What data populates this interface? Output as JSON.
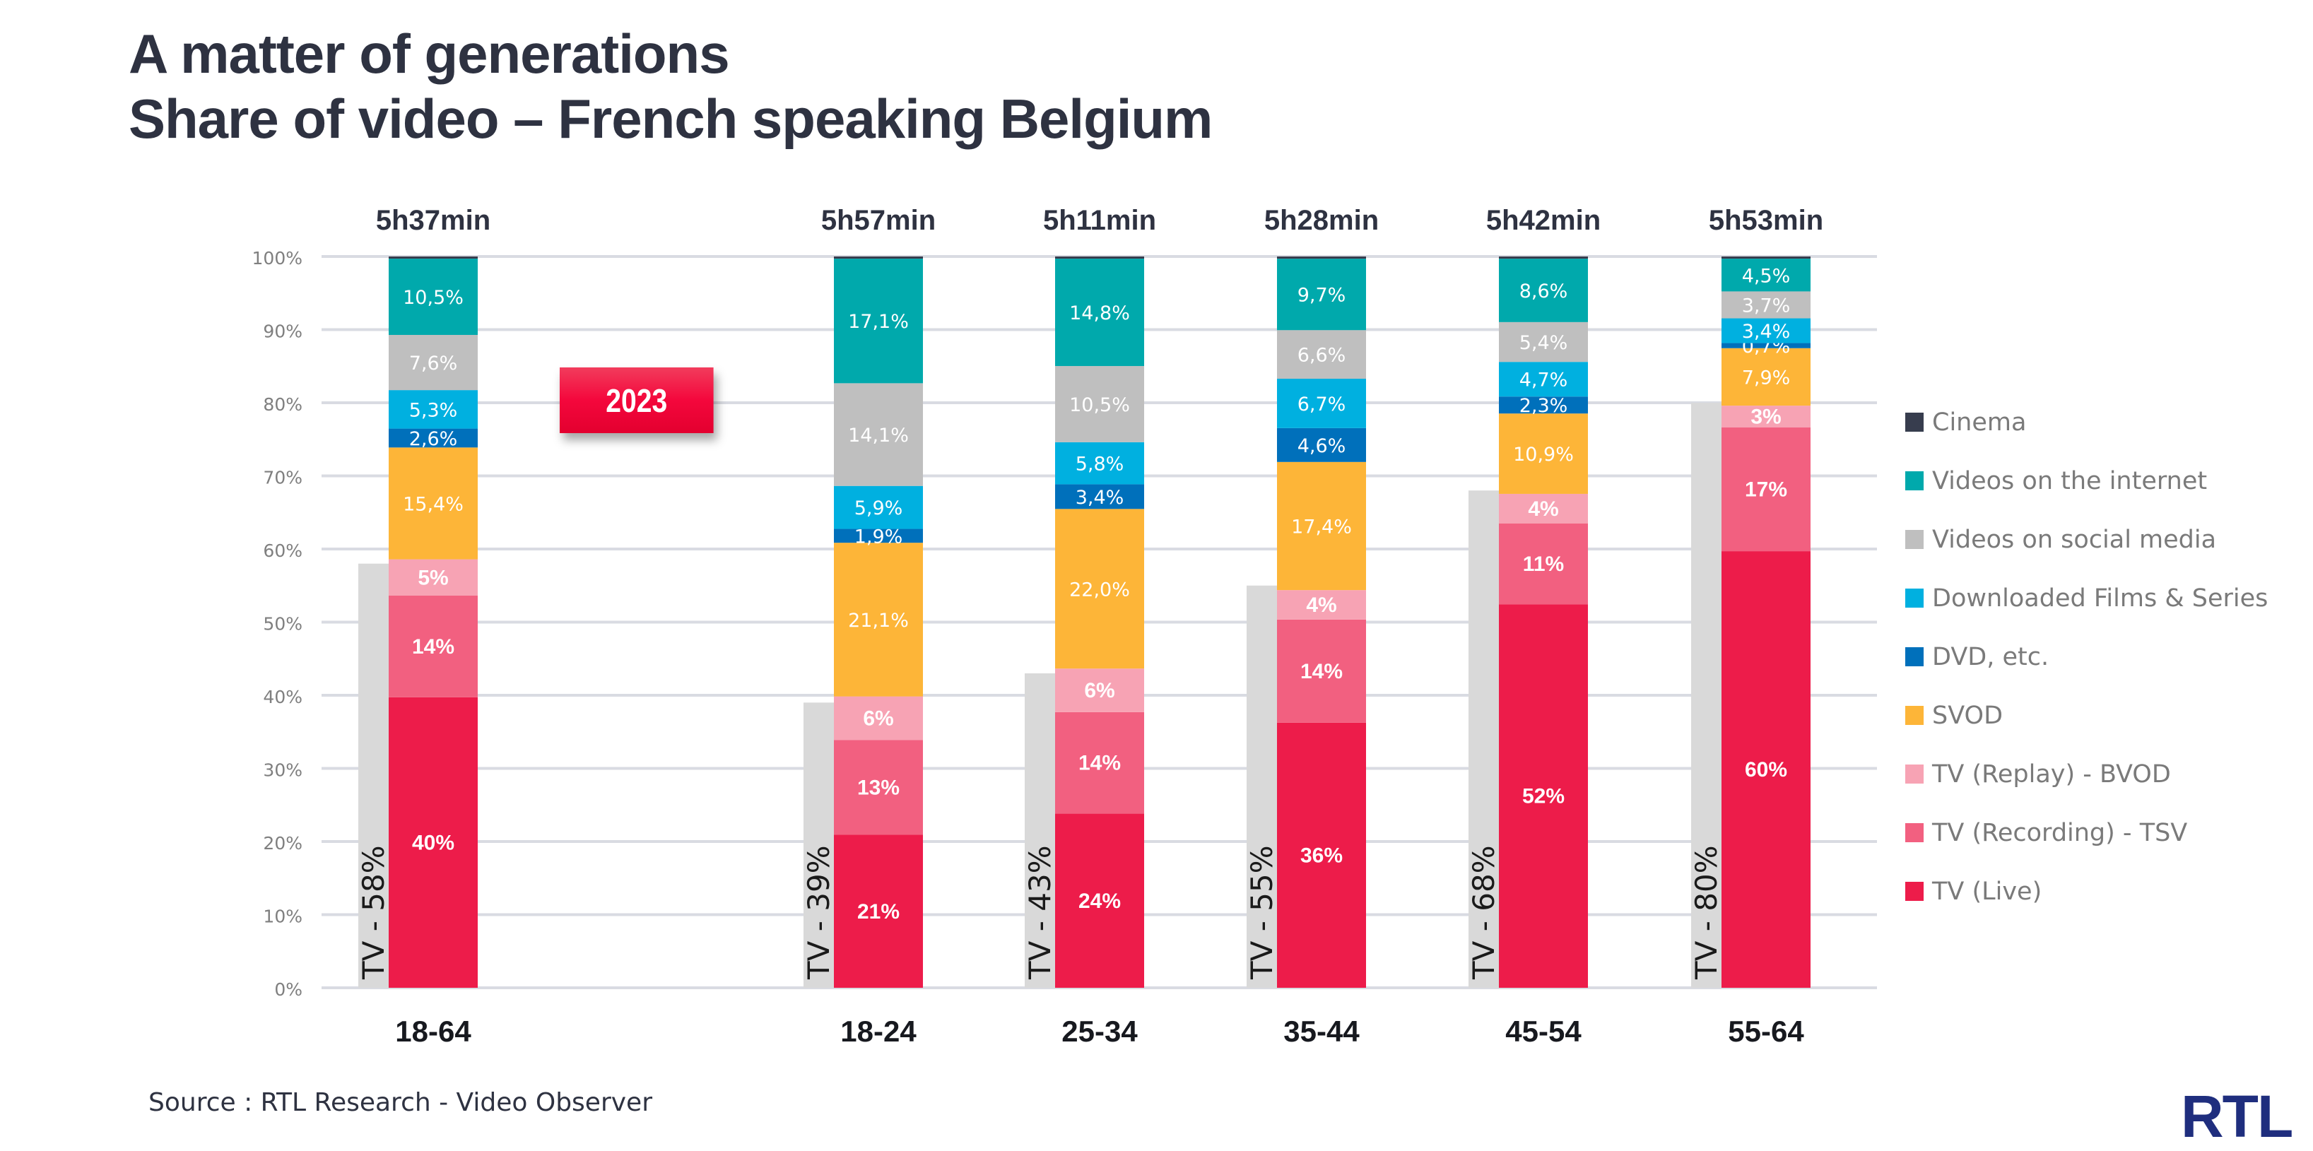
{
  "header": {
    "title_line1": "A matter of generations",
    "title_line2": "Share of video – French speaking Belgium"
  },
  "badge": {
    "label": "2023"
  },
  "source": "Source : RTL Research - Video Observer",
  "logo": {
    "text": "RTL",
    "color": "#1f2e7e"
  },
  "chart_data": {
    "type": "bar",
    "stacked": true,
    "normalized_percent": true,
    "title": "A matter of generations / Share of video – French speaking Belgium",
    "xlabel": "",
    "ylabel": "",
    "ylim": [
      0,
      100
    ],
    "yticks": [
      "0%",
      "10%",
      "20%",
      "30%",
      "40%",
      "50%",
      "60%",
      "70%",
      "80%",
      "90%",
      "100%"
    ],
    "grid": true,
    "legend_position": "right",
    "categories": [
      "18-64",
      "18-24",
      "25-34",
      "35-44",
      "45-54",
      "55-64"
    ],
    "durations": [
      "5h37min",
      "5h57min",
      "5h11min",
      "5h28min",
      "5h42min",
      "5h53min"
    ],
    "tv_totals": {
      "values": [
        58,
        39,
        43,
        55,
        68,
        80
      ],
      "labels": [
        "TV - 58%",
        "TV - 39%",
        "TV - 43%",
        "TV - 55%",
        "TV - 68%",
        "TV - 80%"
      ],
      "color": "#d9d9d9"
    },
    "series": [
      {
        "name": "TV (Live)",
        "color": "#ed1c4a",
        "label_bold": true,
        "values": [
          40,
          21,
          24,
          36,
          52,
          60
        ],
        "labels": [
          "40%",
          "21%",
          "24%",
          "36%",
          "52%",
          "60%"
        ]
      },
      {
        "name": "TV (Recording) - TSV",
        "color": "#f26080",
        "label_bold": true,
        "values": [
          14,
          13,
          14,
          14,
          11,
          17
        ],
        "labels": [
          "14%",
          "13%",
          "14%",
          "14%",
          "11%",
          "17%"
        ]
      },
      {
        "name": "TV (Replay) - BVOD",
        "color": "#f7a3b4",
        "label_bold": true,
        "values": [
          5,
          6,
          6,
          4,
          4,
          3
        ],
        "labels": [
          "5%",
          "6%",
          "6%",
          "4%",
          "4%",
          "3%"
        ]
      },
      {
        "name": "SVOD",
        "color": "#fdb538",
        "label_bold": false,
        "values": [
          15.4,
          21.1,
          22.0,
          17.4,
          10.9,
          7.9
        ],
        "labels": [
          "15,4%",
          "21,1%",
          "22,0%",
          "17,4%",
          "10,9%",
          "7,9%"
        ]
      },
      {
        "name": "DVD, etc.",
        "color": "#0070bb",
        "label_bold": false,
        "values": [
          2.6,
          1.9,
          3.4,
          4.6,
          2.3,
          0.7
        ],
        "labels": [
          "2,6%",
          "1,9%",
          "3,4%",
          "4,6%",
          "2,3%",
          "0,7%"
        ]
      },
      {
        "name": "Downloaded Films & Series",
        "color": "#00b0e0",
        "label_bold": false,
        "values": [
          5.3,
          5.9,
          5.8,
          6.7,
          4.7,
          3.4
        ],
        "labels": [
          "5,3%",
          "5,9%",
          "5,8%",
          "6,7%",
          "4,7%",
          "3,4%"
        ]
      },
      {
        "name": "Videos on social media",
        "color": "#bfbfbf",
        "label_bold": false,
        "values": [
          7.6,
          14.1,
          10.5,
          6.6,
          5.4,
          3.7
        ],
        "labels": [
          "7,6%",
          "14,1%",
          "10,5%",
          "6,6%",
          "5,4%",
          "3,7%"
        ]
      },
      {
        "name": "Videos on the internet",
        "color": "#00a9ac",
        "label_bold": false,
        "values": [
          10.5,
          17.1,
          14.8,
          9.7,
          8.6,
          4.5
        ],
        "labels": [
          "10,5%",
          "17,1%",
          "14,8%",
          "9,7%",
          "8,6%",
          "4,5%"
        ]
      },
      {
        "name": "Cinema",
        "color": "#373d4e",
        "label_bold": false,
        "values": [
          0.3,
          0.3,
          0.3,
          0.3,
          0.3,
          0.3
        ],
        "labels": [
          "",
          "",
          "",
          "",
          "",
          ""
        ]
      }
    ],
    "legend_order": [
      "Cinema",
      "Videos on the internet",
      "Videos on social media",
      "Downloaded Films & Series",
      "DVD, etc.",
      "SVOD",
      "TV (Replay) - BVOD",
      "TV (Recording) - TSV",
      "TV (Live)"
    ]
  }
}
